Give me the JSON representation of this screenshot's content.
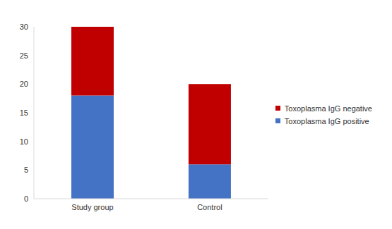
{
  "chart_data": {
    "type": "bar",
    "stacked": true,
    "categories": [
      "Study group",
      "Control"
    ],
    "series": [
      {
        "name": "Toxoplasma IgG positive",
        "color": "#4472c4",
        "values": [
          18,
          6
        ]
      },
      {
        "name": "Toxoplasma IgG negative",
        "color": "#c00000",
        "values": [
          12,
          14
        ]
      }
    ],
    "ylim": [
      0,
      30
    ],
    "yticks": [
      0,
      5,
      10,
      15,
      20,
      25,
      30
    ],
    "grid": false,
    "legend": "right"
  }
}
